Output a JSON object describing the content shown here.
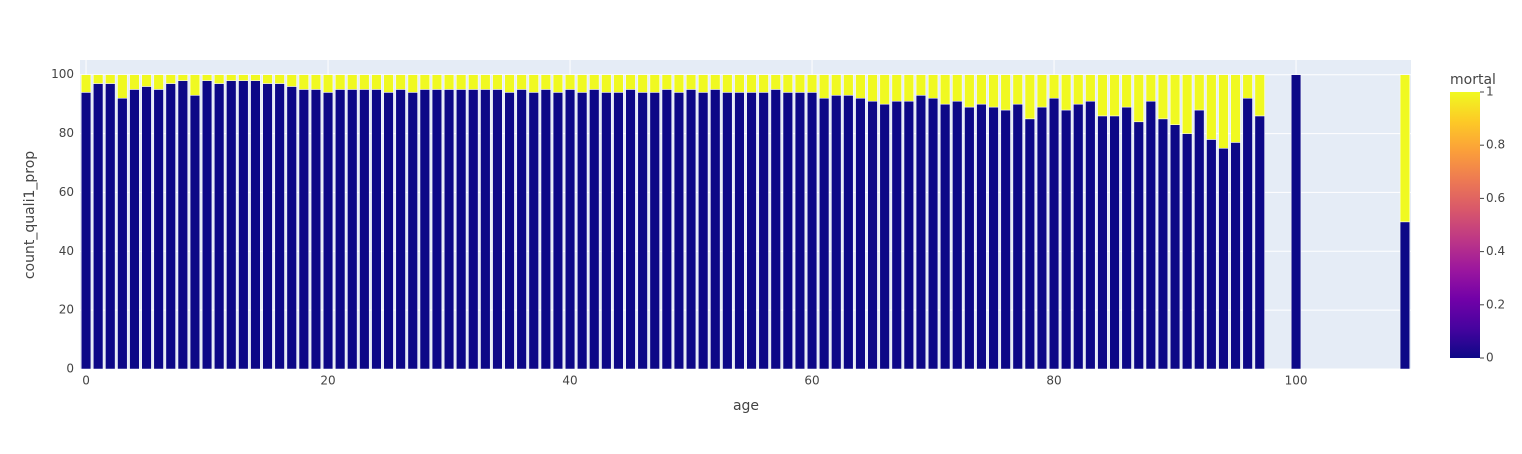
{
  "chart_data": {
    "type": "bar",
    "barmode": "stack",
    "x_label": "age",
    "y_label": "count_quali1_prop",
    "x": [
      0,
      1,
      2,
      3,
      4,
      5,
      6,
      7,
      8,
      9,
      10,
      11,
      12,
      13,
      14,
      15,
      16,
      17,
      18,
      19,
      20,
      21,
      22,
      23,
      24,
      25,
      26,
      27,
      28,
      29,
      30,
      31,
      32,
      33,
      34,
      35,
      36,
      37,
      38,
      39,
      40,
      41,
      42,
      43,
      44,
      45,
      46,
      47,
      48,
      49,
      50,
      51,
      52,
      53,
      54,
      55,
      56,
      57,
      58,
      59,
      60,
      61,
      62,
      63,
      64,
      65,
      66,
      67,
      68,
      69,
      70,
      71,
      72,
      73,
      74,
      75,
      76,
      77,
      78,
      79,
      80,
      81,
      82,
      83,
      84,
      85,
      86,
      87,
      88,
      89,
      90,
      91,
      92,
      93,
      94,
      95,
      96,
      97,
      100,
      109
    ],
    "series": [
      {
        "color": "#0d0887",
        "values": [
          94,
          97,
          97,
          92,
          95,
          96,
          95,
          97,
          98,
          93,
          98,
          97,
          98,
          98,
          98,
          97,
          97,
          96,
          95,
          95,
          94,
          95,
          95,
          95,
          95,
          94,
          95,
          94,
          95,
          95,
          95,
          95,
          95,
          95,
          95,
          94,
          95,
          94,
          95,
          94,
          95,
          94,
          95,
          94,
          94,
          95,
          94,
          94,
          95,
          94,
          95,
          94,
          95,
          94,
          94,
          94,
          94,
          95,
          94,
          94,
          94,
          92,
          93,
          93,
          92,
          91,
          90,
          91,
          91,
          93,
          92,
          90,
          91,
          89,
          90,
          89,
          88,
          90,
          85,
          89,
          92,
          88,
          90,
          91,
          86,
          86,
          89,
          84,
          91,
          85,
          83,
          80,
          88,
          78,
          75,
          77,
          92,
          86,
          100,
          50
        ]
      },
      {
        "color": "#f0f921",
        "values": [
          6,
          3,
          3,
          8,
          5,
          4,
          5,
          3,
          2,
          7,
          2,
          3,
          2,
          2,
          2,
          3,
          3,
          4,
          5,
          5,
          6,
          5,
          5,
          5,
          5,
          6,
          5,
          6,
          5,
          5,
          5,
          5,
          5,
          5,
          5,
          6,
          5,
          6,
          5,
          6,
          5,
          6,
          5,
          6,
          6,
          5,
          6,
          6,
          5,
          6,
          5,
          6,
          5,
          6,
          6,
          6,
          6,
          5,
          6,
          6,
          6,
          8,
          7,
          7,
          8,
          9,
          10,
          9,
          9,
          7,
          8,
          10,
          9,
          11,
          10,
          11,
          12,
          10,
          15,
          11,
          8,
          12,
          10,
          9,
          14,
          14,
          11,
          16,
          9,
          15,
          17,
          20,
          12,
          22,
          25,
          23,
          8,
          14,
          0,
          50
        ]
      }
    ],
    "xlim": [
      -0.5,
      109.5
    ],
    "xticks": [
      0,
      20,
      40,
      60,
      80,
      100
    ],
    "ylim": [
      0,
      105
    ],
    "yticks": [
      0,
      20,
      40,
      60,
      80,
      100
    ],
    "grid": true,
    "colorbar": {
      "title": "mortal",
      "range": [
        0,
        1
      ],
      "ticks": [
        0,
        0.2,
        0.4,
        0.6,
        0.8,
        1
      ],
      "colorscale": [
        "#0d0887",
        "#46039f",
        "#7201a8",
        "#9c179e",
        "#bd3786",
        "#d8576b",
        "#ed7953",
        "#fb9f3a",
        "#fdca26",
        "#f0f921"
      ]
    }
  }
}
